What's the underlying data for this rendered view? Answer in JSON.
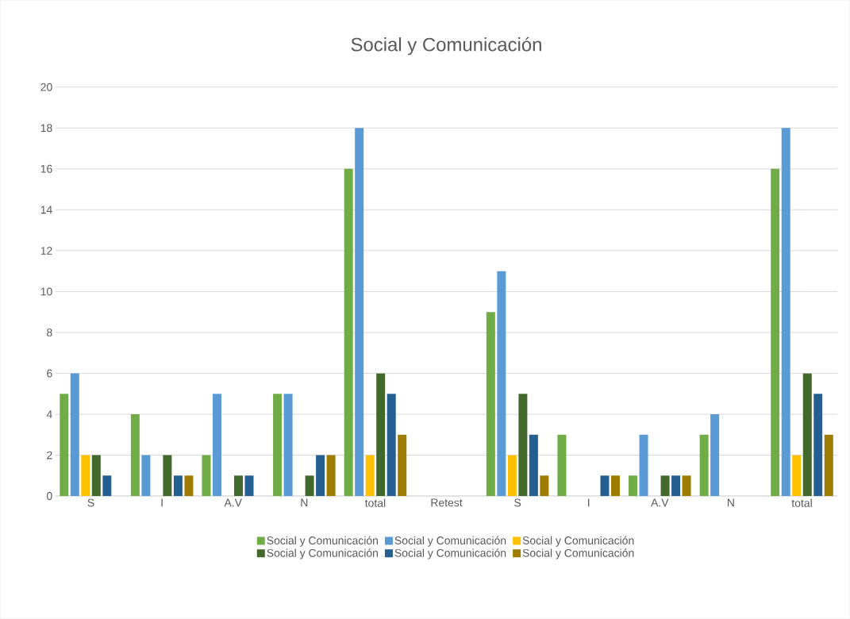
{
  "chart_data": {
    "type": "bar",
    "title": "Social y Comunicación",
    "categories": [
      "S",
      "I",
      "A.V",
      "N",
      "total",
      "Retest",
      "S",
      "I",
      "A.V",
      "N",
      "total"
    ],
    "series": [
      {
        "name": "Social y  Comunicación",
        "color": "#70ad47",
        "values": [
          5,
          4,
          2,
          5,
          16,
          null,
          9,
          3,
          1,
          3,
          16
        ]
      },
      {
        "name": "Social y  Comunicación",
        "color": "#5b9bd5",
        "values": [
          6,
          2,
          5,
          5,
          18,
          null,
          11,
          null,
          3,
          4,
          18
        ]
      },
      {
        "name": "Social y  Comunicación",
        "color": "#ffc000",
        "values": [
          2,
          null,
          null,
          null,
          2,
          null,
          2,
          null,
          null,
          null,
          2
        ]
      },
      {
        "name": "Social y  Comunicación",
        "color": "#43682b",
        "values": [
          2,
          2,
          1,
          1,
          6,
          null,
          5,
          null,
          1,
          null,
          6
        ]
      },
      {
        "name": "Social y  Comunicación",
        "color": "#255e91",
        "values": [
          1,
          1,
          1,
          2,
          5,
          null,
          3,
          1,
          1,
          null,
          5
        ]
      },
      {
        "name": "Social y  Comunicación",
        "color": "#9e7c00",
        "values": [
          null,
          1,
          null,
          2,
          3,
          null,
          1,
          1,
          1,
          null,
          3
        ]
      }
    ],
    "ylim": [
      0,
      20
    ],
    "yticks": [
      0,
      2,
      4,
      6,
      8,
      10,
      12,
      14,
      16,
      18,
      20
    ],
    "grid": "y",
    "legend": "bottom"
  }
}
